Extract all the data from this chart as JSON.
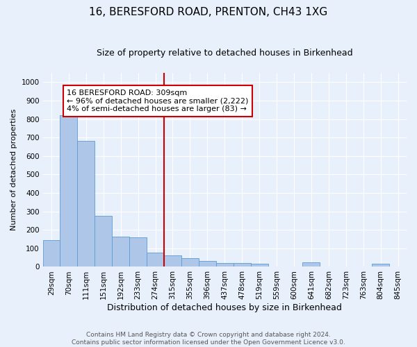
{
  "title": "16, BERESFORD ROAD, PRENTON, CH43 1XG",
  "subtitle": "Size of property relative to detached houses in Birkenhead",
  "xlabel": "Distribution of detached houses by size in Birkenhead",
  "ylabel": "Number of detached properties",
  "categories": [
    "29sqm",
    "70sqm",
    "111sqm",
    "151sqm",
    "192sqm",
    "233sqm",
    "274sqm",
    "315sqm",
    "355sqm",
    "396sqm",
    "437sqm",
    "478sqm",
    "519sqm",
    "559sqm",
    "600sqm",
    "641sqm",
    "682sqm",
    "723sqm",
    "763sqm",
    "804sqm",
    "845sqm"
  ],
  "values": [
    145,
    820,
    680,
    275,
    165,
    160,
    75,
    60,
    45,
    30,
    20,
    20,
    15,
    0,
    0,
    25,
    0,
    0,
    0,
    15,
    0
  ],
  "bar_color": "#aec6e8",
  "bar_edgecolor": "#5b9bd5",
  "vline_color": "#cc0000",
  "annotation_text": "16 BERESFORD ROAD: 309sqm\n← 96% of detached houses are smaller (2,222)\n4% of semi-detached houses are larger (83) →",
  "annotation_box_edgecolor": "#cc0000",
  "annotation_box_facecolor": "#ffffff",
  "footer_text": "Contains HM Land Registry data © Crown copyright and database right 2024.\nContains public sector information licensed under the Open Government Licence v3.0.",
  "background_color": "#e8f0fb",
  "axes_background_color": "#e8f0fb",
  "ylim": [
    0,
    1050
  ],
  "yticks": [
    0,
    100,
    200,
    300,
    400,
    500,
    600,
    700,
    800,
    900,
    1000
  ],
  "title_fontsize": 11,
  "subtitle_fontsize": 9,
  "xlabel_fontsize": 9,
  "ylabel_fontsize": 8,
  "tick_fontsize": 7.5,
  "annotation_fontsize": 8,
  "footer_fontsize": 6.5
}
